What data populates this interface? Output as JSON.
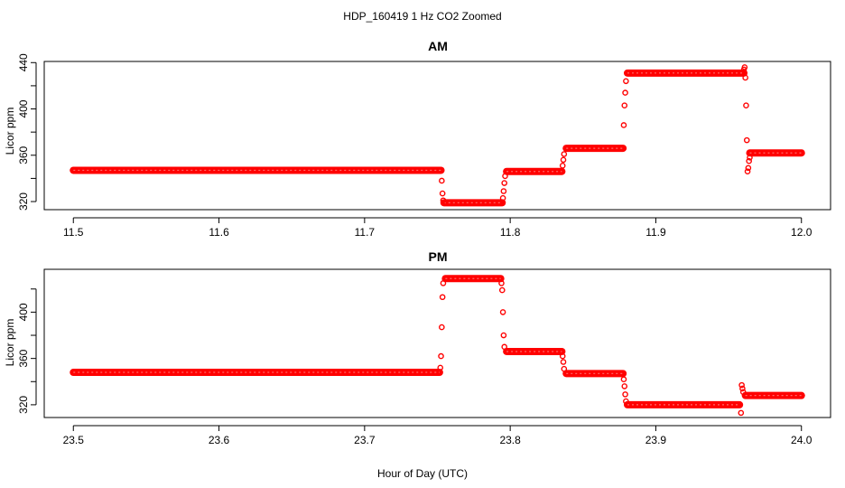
{
  "figure": {
    "title": "HDP_160419  1 Hz CO2 Zoomed",
    "xlabel": "Hour of Day (UTC)",
    "marker_color": "#ff0000"
  },
  "chart_data": [
    {
      "type": "scatter",
      "title": "AM",
      "ylabel": "Licor ppm",
      "xlim": [
        11.48,
        12.02
      ],
      "ylim": [
        313,
        441
      ],
      "x_ticks": [
        11.5,
        11.6,
        11.7,
        11.8,
        11.9,
        12.0
      ],
      "x_tick_labels": [
        "11.5",
        "11.6",
        "11.7",
        "11.8",
        "11.9",
        "12.0"
      ],
      "y_ticks": [
        320,
        340,
        360,
        380,
        400,
        420,
        440
      ],
      "y_tick_labels": [
        "320",
        "",
        "360",
        "",
        "400",
        "",
        "440"
      ],
      "segments": [
        {
          "x_start": 11.5,
          "x_end": 11.7525,
          "y": 347
        },
        {
          "x_start": 11.7545,
          "x_end": 11.7945,
          "y": 319
        },
        {
          "x_start": 11.7975,
          "x_end": 11.8355,
          "y": 346
        },
        {
          "x_start": 11.8385,
          "x_end": 11.8775,
          "y": 366
        },
        {
          "x_start": 11.8805,
          "x_end": 11.9605,
          "y": 431
        },
        {
          "x_start": 11.9645,
          "x_end": 12.0,
          "y": 362
        }
      ],
      "transition_points": [
        {
          "x": 11.753,
          "y": 338
        },
        {
          "x": 11.7535,
          "y": 327
        },
        {
          "x": 11.754,
          "y": 321
        },
        {
          "x": 11.795,
          "y": 323
        },
        {
          "x": 11.7955,
          "y": 329
        },
        {
          "x": 11.796,
          "y": 336
        },
        {
          "x": 11.7965,
          "y": 342
        },
        {
          "x": 11.836,
          "y": 351
        },
        {
          "x": 11.8365,
          "y": 356
        },
        {
          "x": 11.837,
          "y": 361
        },
        {
          "x": 11.878,
          "y": 386
        },
        {
          "x": 11.8785,
          "y": 403
        },
        {
          "x": 11.879,
          "y": 414
        },
        {
          "x": 11.8795,
          "y": 424
        },
        {
          "x": 11.9605,
          "y": 434
        },
        {
          "x": 11.961,
          "y": 436
        },
        {
          "x": 11.9615,
          "y": 427
        },
        {
          "x": 11.962,
          "y": 403
        },
        {
          "x": 11.9625,
          "y": 373
        },
        {
          "x": 11.963,
          "y": 346
        },
        {
          "x": 11.9635,
          "y": 349
        },
        {
          "x": 11.964,
          "y": 355
        },
        {
          "x": 11.9645,
          "y": 358
        }
      ]
    },
    {
      "type": "scatter",
      "title": "PM",
      "ylabel": "Licor ppm",
      "xlim": [
        23.48,
        24.02
      ],
      "ylim": [
        309,
        437
      ],
      "x_ticks": [
        23.5,
        23.6,
        23.7,
        23.8,
        23.9,
        24.0
      ],
      "x_tick_labels": [
        "23.5",
        "23.6",
        "23.7",
        "23.8",
        "23.9",
        "24.0"
      ],
      "y_ticks": [
        320,
        340,
        360,
        380,
        400,
        420
      ],
      "y_tick_labels": [
        "320",
        "",
        "360",
        "",
        "400",
        ""
      ],
      "segments": [
        {
          "x_start": 23.5,
          "x_end": 23.7515,
          "y": 348
        },
        {
          "x_start": 23.7555,
          "x_end": 23.7935,
          "y": 429
        },
        {
          "x_start": 23.7975,
          "x_end": 23.8355,
          "y": 366
        },
        {
          "x_start": 23.8385,
          "x_end": 23.8775,
          "y": 347
        },
        {
          "x_start": 23.8805,
          "x_end": 23.9575,
          "y": 320
        },
        {
          "x_start": 23.9615,
          "x_end": 24.0,
          "y": 328
        }
      ],
      "transition_points": [
        {
          "x": 23.752,
          "y": 352
        },
        {
          "x": 23.7525,
          "y": 362
        },
        {
          "x": 23.753,
          "y": 387
        },
        {
          "x": 23.7535,
          "y": 413
        },
        {
          "x": 23.754,
          "y": 425
        },
        {
          "x": 23.794,
          "y": 425
        },
        {
          "x": 23.7945,
          "y": 419
        },
        {
          "x": 23.795,
          "y": 400
        },
        {
          "x": 23.7955,
          "y": 380
        },
        {
          "x": 23.796,
          "y": 370
        },
        {
          "x": 23.836,
          "y": 362
        },
        {
          "x": 23.8365,
          "y": 357
        },
        {
          "x": 23.837,
          "y": 351
        },
        {
          "x": 23.878,
          "y": 342
        },
        {
          "x": 23.8785,
          "y": 336
        },
        {
          "x": 23.879,
          "y": 329
        },
        {
          "x": 23.8795,
          "y": 323
        },
        {
          "x": 23.9585,
          "y": 313
        },
        {
          "x": 23.959,
          "y": 337
        },
        {
          "x": 23.9595,
          "y": 334
        },
        {
          "x": 23.96,
          "y": 331
        }
      ]
    }
  ]
}
